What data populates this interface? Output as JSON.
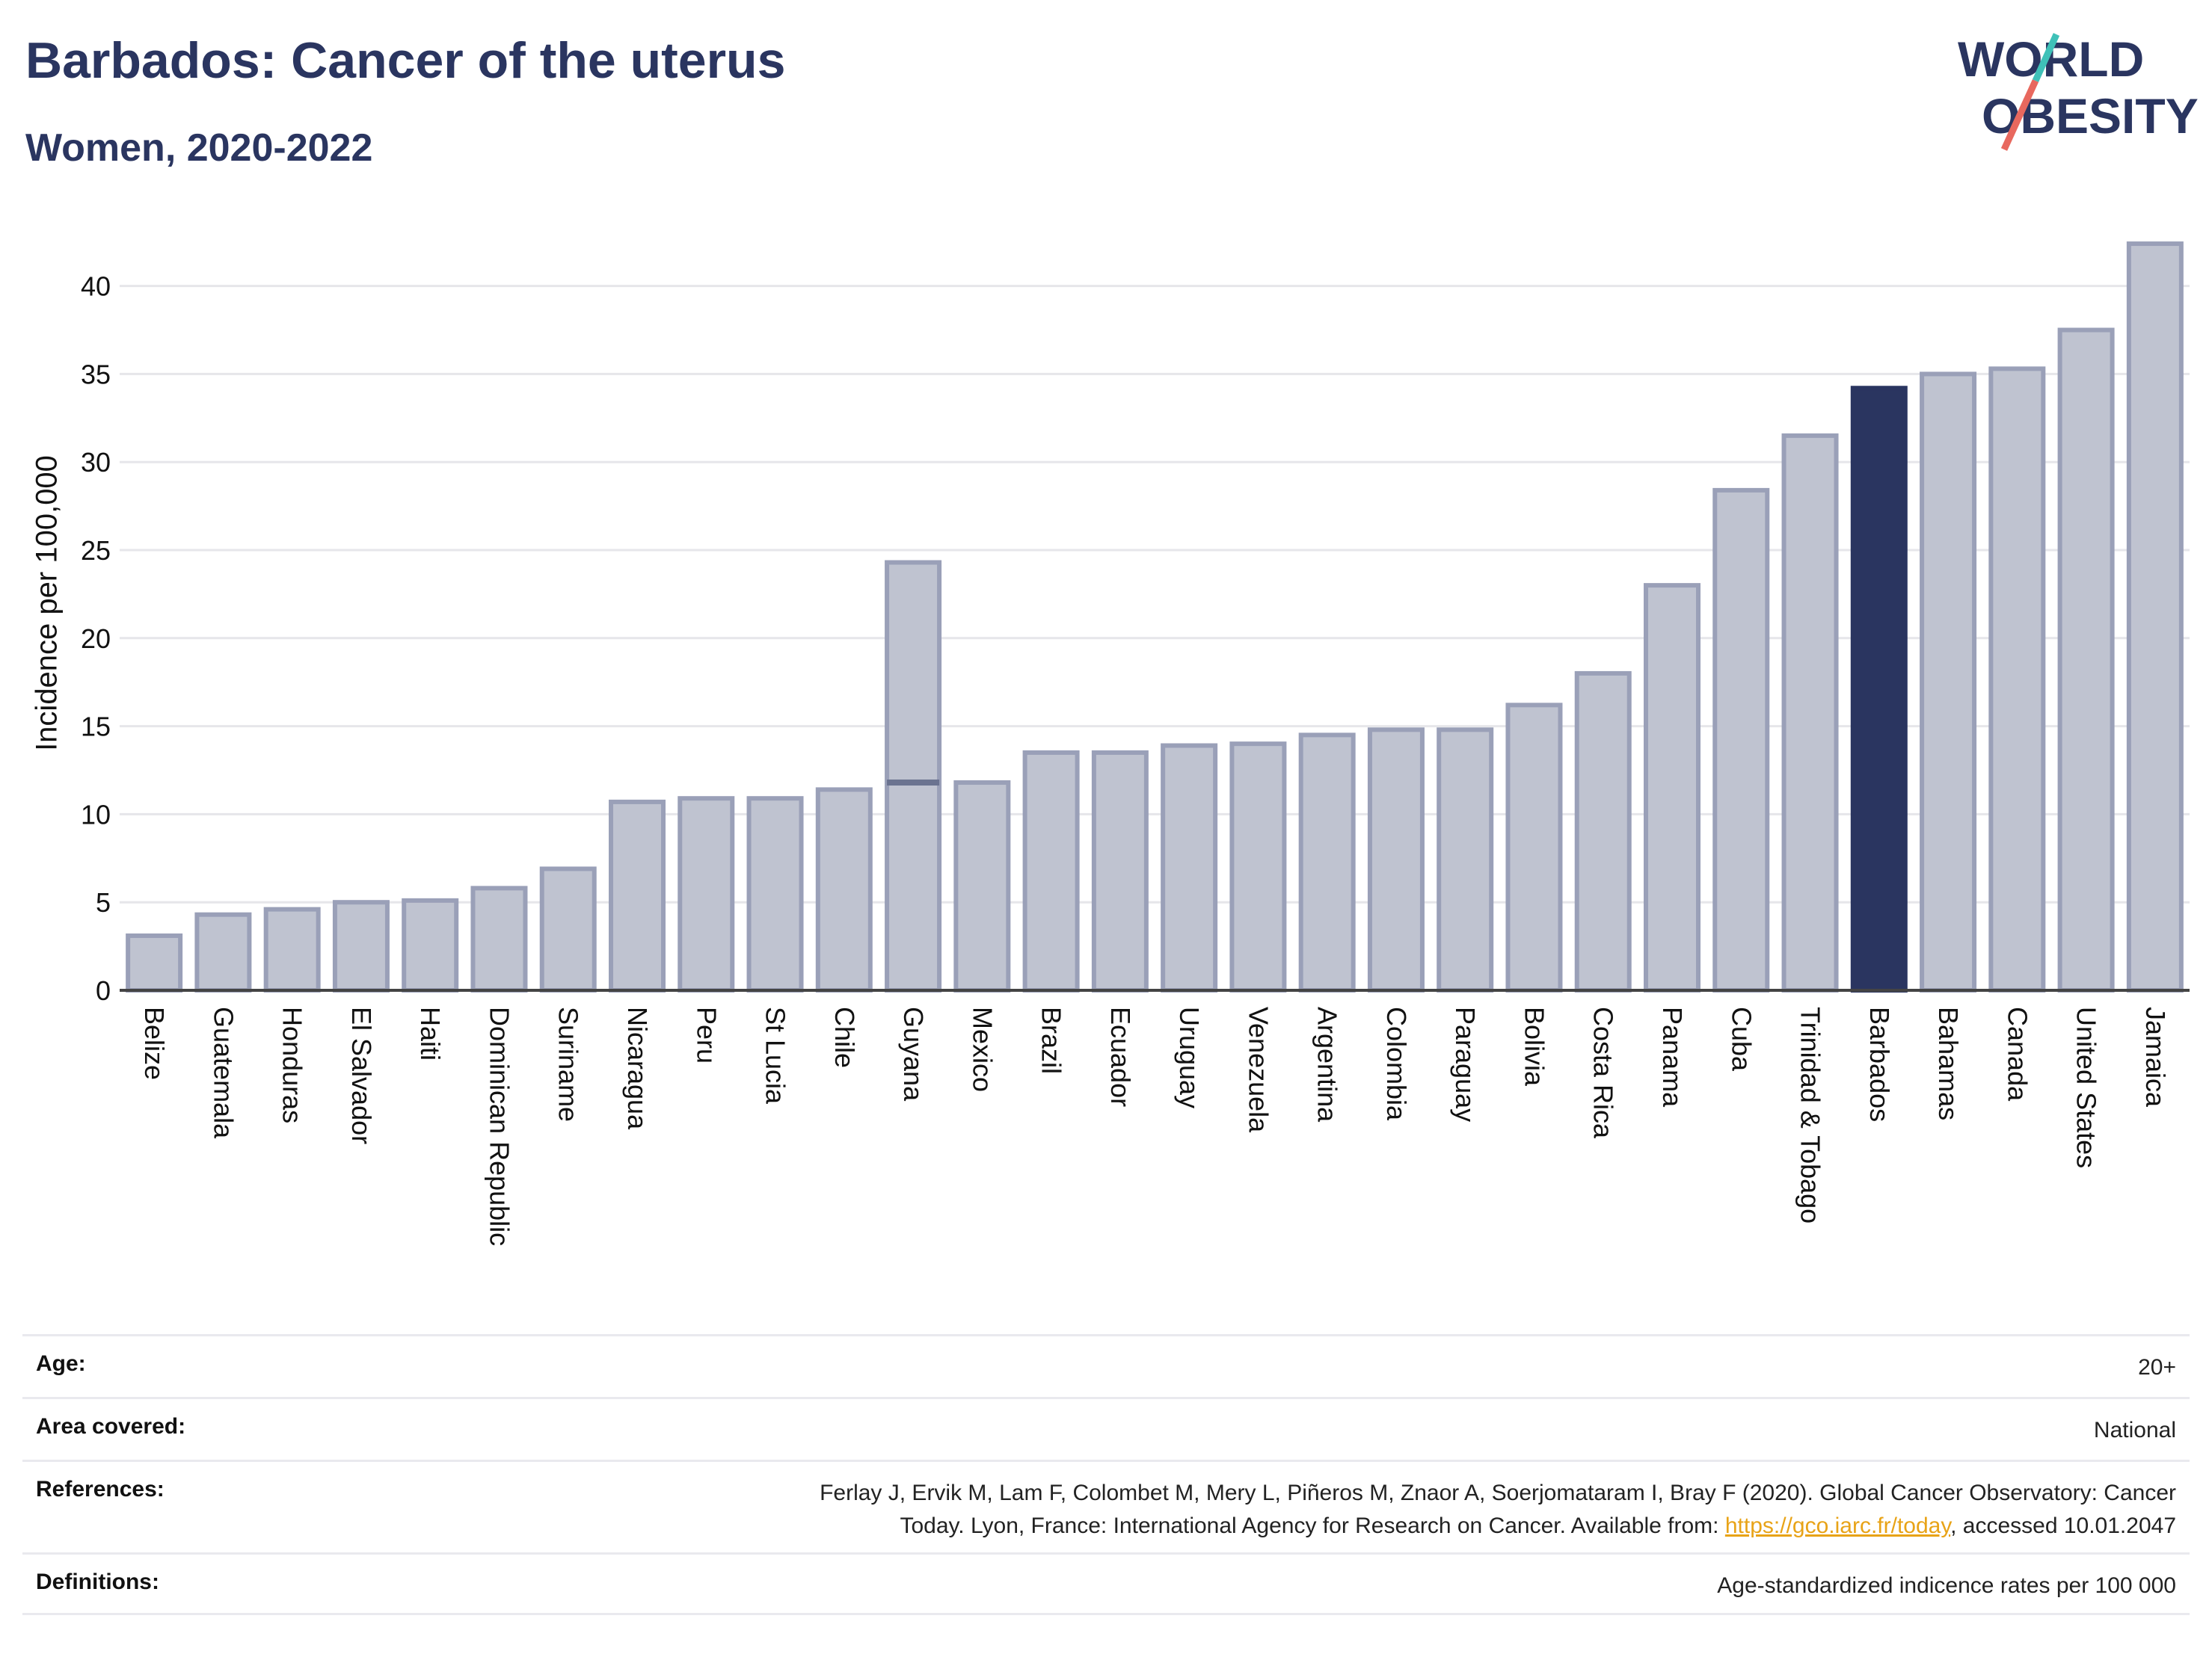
{
  "header": {
    "title": "Barbados: Cancer of the uterus",
    "subtitle": "Women, 2020-2022"
  },
  "logo": {
    "line1": "WORLD",
    "line2": "OBESITY",
    "slash_colors": [
      "#e8685e",
      "#3fc1b8"
    ],
    "text_color": "#2a3560"
  },
  "colors": {
    "bar_default_fill": "#bfc3d0",
    "bar_default_stroke": "#9aa0b8",
    "bar_highlight": "#2a3560",
    "gridline": "#e6e6ea",
    "baseline": "#444444"
  },
  "chart_data": {
    "type": "bar",
    "ylabel": "Incidence per 100,000",
    "ylim": [
      0,
      43.5
    ],
    "yticks": [
      0,
      5,
      10,
      15,
      20,
      25,
      30,
      35,
      40
    ],
    "grid": true,
    "highlight": "Barbados",
    "categories": [
      "Belize",
      "Guatemala",
      "Honduras",
      "El Salvador",
      "Haiti",
      "Dominican Republic",
      "Suriname",
      "Nicaragua",
      "Peru",
      "St Lucia",
      "Chile",
      "Guyana",
      "Mexico",
      "Brazil",
      "Ecuador",
      "Uruguay",
      "Venezuela",
      "Argentina",
      "Colombia",
      "Paraguay",
      "Bolivia",
      "Costa Rica",
      "Panama",
      "Cuba",
      "Trinidad & Tobago",
      "Barbados",
      "Bahamas",
      "Canada",
      "United States",
      "Jamaica"
    ],
    "values": [
      3.1,
      4.3,
      4.6,
      5.0,
      5.1,
      5.8,
      6.9,
      10.7,
      10.9,
      10.9,
      11.4,
      24.3,
      11.8,
      13.5,
      13.5,
      13.9,
      14.0,
      14.5,
      14.8,
      14.8,
      16.2,
      18.0,
      23.0,
      28.4,
      31.5,
      34.2,
      35.0,
      35.3,
      37.5,
      42.4
    ],
    "overlay_markers": [
      {
        "category": "Guyana",
        "value": 11.8
      }
    ]
  },
  "info": [
    {
      "label": "Age:",
      "value": "20+"
    },
    {
      "label": "Area covered:",
      "value": "National"
    },
    {
      "label": "References:",
      "value_parts": [
        "Ferlay J, Ervik M, Lam F, Colombet M, Mery L, Piñeros M, Znaor A, Soerjomataram I, Bray F (2020). Global Cancer Observatory: Cancer",
        "Today. Lyon, France: International Agency for Research on Cancer. Available from: ",
        "https://gco.iarc.fr/today",
        ", accessed 10.01.2047"
      ]
    },
    {
      "label": "Definitions:",
      "value": "Age-standardized indicence rates per 100 000"
    }
  ]
}
